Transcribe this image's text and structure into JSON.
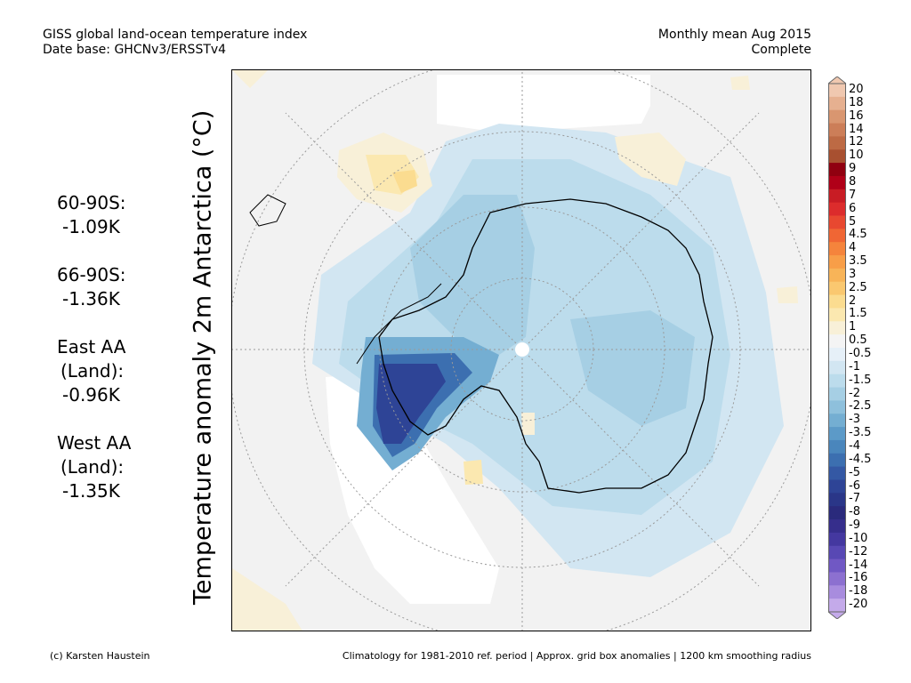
{
  "header": {
    "title_line1": "GISS global land-ocean temperature index",
    "title_line2": "Date base: GHCNv3/ERSSTv4",
    "period_line1": "Monthly mean Aug 2015",
    "period_line2": "Complete"
  },
  "axis_label": "Temperature anomaly 2m Antarctica (°C)",
  "stats": [
    {
      "label": "60-90S:",
      "value": "-1.09K"
    },
    {
      "label": "66-90S:",
      "value": "-1.36K"
    },
    {
      "label": "East AA",
      "label2": "(Land):",
      "value": "-0.96K"
    },
    {
      "label": "West AA",
      "label2": "(Land):",
      "value": "-1.35K"
    }
  ],
  "colorbar": {
    "labels": [
      "20",
      "18",
      "16",
      "14",
      "12",
      "10",
      "9",
      "8",
      "7",
      "6",
      "5",
      "4.5",
      "4",
      "3.5",
      "3",
      "2.5",
      "2",
      "1.5",
      "1",
      "0.5",
      "-0.5",
      "-1",
      "-1.5",
      "-2",
      "-2.5",
      "-3",
      "-3.5",
      "-4",
      "-4.5",
      "-5",
      "-6",
      "-7",
      "-8",
      "-9",
      "-10",
      "-12",
      "-14",
      "-16",
      "-18",
      "-20"
    ],
    "colors": [
      "#f0c8b0",
      "#e6b090",
      "#d99670",
      "#cc7e58",
      "#bd6a44",
      "#a85030",
      "#900010",
      "#b00018",
      "#c81c24",
      "#dc2c2c",
      "#e84830",
      "#f06634",
      "#f5843c",
      "#f89e48",
      "#f8b458",
      "#fac870",
      "#fbdc90",
      "#fbe8b0",
      "#f8f0d8",
      "#f4f4f4",
      "#e6f0f8",
      "#d2e6f2",
      "#bcdcec",
      "#a6cfe4",
      "#8ec0dc",
      "#74aed2",
      "#5c9ac8",
      "#4a86bc",
      "#3c6fb0",
      "#3458a4",
      "#2e4496",
      "#2a3688",
      "#2a2a7c",
      "#362e8c",
      "#4438a0",
      "#5848b4",
      "#7058c4",
      "#8c70d0",
      "#a88cde",
      "#c4aaea"
    ]
  },
  "footer": {
    "left": "(c) Karsten Haustein",
    "right": "Climatology for 1981-2010 ref. period | Approx. grid box anomalies | 1200 km smoothing radius"
  }
}
